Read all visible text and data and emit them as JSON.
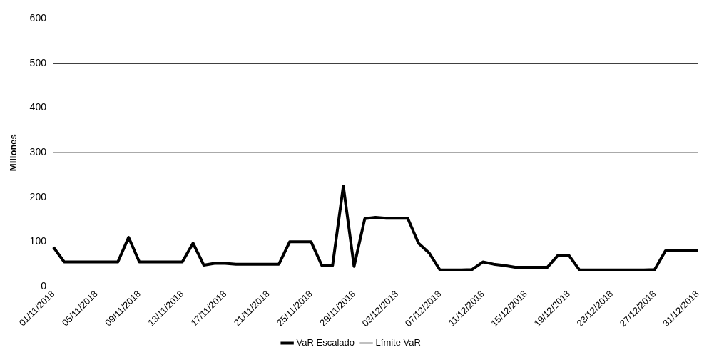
{
  "chart_data": {
    "type": "line",
    "ylabel": "Millones",
    "categories": [
      "01/11/2018",
      null,
      null,
      null,
      "05/11/2018",
      null,
      null,
      null,
      "09/11/2018",
      null,
      null,
      null,
      "13/11/2018",
      null,
      null,
      null,
      "17/11/2018",
      null,
      null,
      null,
      "21/11/2018",
      null,
      null,
      null,
      "25/11/2018",
      null,
      null,
      null,
      "29/11/2018",
      null,
      null,
      null,
      "03/12/2018",
      null,
      null,
      null,
      "07/12/2018",
      null,
      null,
      null,
      "11/12/2018",
      null,
      null,
      null,
      "15/12/2018",
      null,
      null,
      null,
      "19/12/2018",
      null,
      null,
      null,
      "23/12/2018",
      null,
      null,
      null,
      "27/12/2018",
      null,
      null,
      null,
      "31/12/2018"
    ],
    "series": [
      {
        "name": "VaR Escalado",
        "color": "#000000",
        "values": [
          88,
          55,
          55,
          55,
          55,
          55,
          55,
          110,
          55,
          55,
          55,
          55,
          55,
          97,
          48,
          52,
          52,
          50,
          50,
          50,
          50,
          50,
          100,
          100,
          100,
          47,
          47,
          225,
          45,
          152,
          155,
          153,
          153,
          153,
          97,
          75,
          37,
          37,
          37,
          38,
          55,
          50,
          47,
          43,
          43,
          43,
          43,
          70,
          70,
          37,
          37,
          37,
          37,
          37,
          37,
          37,
          38,
          80,
          80,
          80,
          80
        ]
      },
      {
        "name": "Límite VaR",
        "color": "#000000",
        "values": [
          500,
          500,
          500,
          500,
          500,
          500,
          500,
          500,
          500,
          500,
          500,
          500,
          500,
          500,
          500,
          500,
          500,
          500,
          500,
          500,
          500,
          500,
          500,
          500,
          500,
          500,
          500,
          500,
          500,
          500,
          500,
          500,
          500,
          500,
          500,
          500,
          500,
          500,
          500,
          500,
          500,
          500,
          500,
          500,
          500,
          500,
          500,
          500,
          500,
          500,
          500,
          500,
          500,
          500,
          500,
          500,
          500,
          500,
          500,
          500,
          500
        ]
      }
    ],
    "ylim": [
      0,
      600
    ],
    "yticks": [
      0,
      100,
      200,
      300,
      400,
      500,
      600
    ],
    "grid": "y",
    "legend": "bottom",
    "marker": "none",
    "line_style": "solid"
  }
}
